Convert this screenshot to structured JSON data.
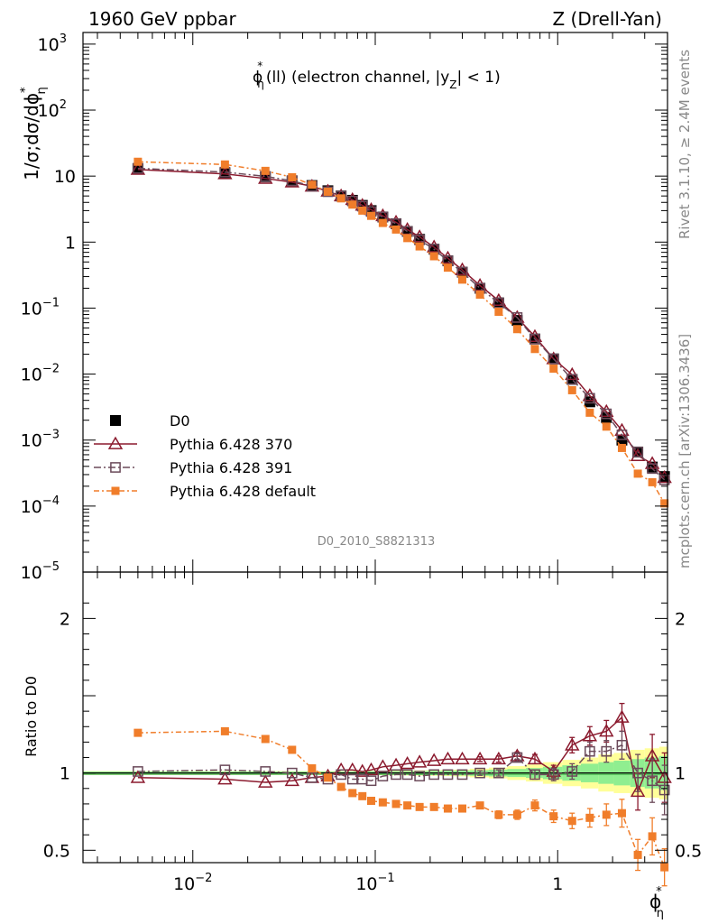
{
  "header": {
    "energy": "1960 GeV ppbar",
    "process": "Z (Drell-Yan)",
    "analysis_tag": "D0_2010_S8821313",
    "side_info": "Rivet 3.1.10, ≥ 2.4M events",
    "side_source": "mcplots.cern.ch [arXiv:1306.3436]"
  },
  "chart_data": [
    {
      "type": "scatter",
      "panel": "main",
      "title_base": "ϕ",
      "title_star": "*",
      "title_sub": "η",
      "title_rest": "(ll) (electron channel, |y",
      "title_ysub": "Z",
      "title_end": "| < 1)",
      "ylabel": "1/σ;dσ/dϕ",
      "ylabel_sup": "*",
      "ylabel_sub": "η",
      "x_scale": "log",
      "y_scale": "log",
      "xlim": [
        0.0025,
        4.0
      ],
      "ylim": [
        1e-05,
        1500
      ],
      "yticks": [
        {
          "v": 1e-05,
          "base": "10",
          "exp": "−5"
        },
        {
          "v": 0.0001,
          "base": "10",
          "exp": "−4"
        },
        {
          "v": 0.001,
          "base": "10",
          "exp": "−3"
        },
        {
          "v": 0.01,
          "base": "10",
          "exp": "−2"
        },
        {
          "v": 0.1,
          "base": "10",
          "exp": "−1"
        },
        {
          "v": 1,
          "base": "1",
          "exp": ""
        },
        {
          "v": 10,
          "base": "10",
          "exp": ""
        },
        {
          "v": 100,
          "base": "10",
          "exp": "2"
        },
        {
          "v": 1000,
          "base": "10",
          "exp": "3"
        }
      ],
      "x": [
        0.005,
        0.015,
        0.025,
        0.035,
        0.045,
        0.055,
        0.065,
        0.075,
        0.085,
        0.095,
        0.11,
        0.13,
        0.15,
        0.175,
        0.21,
        0.25,
        0.3,
        0.375,
        0.475,
        0.6,
        0.75,
        0.95,
        1.2,
        1.5,
        1.85,
        2.25,
        2.75,
        3.3,
        3.85
      ],
      "legend_position": "lower-left",
      "series": [
        {
          "name": "D0",
          "style": "filled-square",
          "color": "#000000",
          "values": [
            13,
            11.2,
            9.8,
            8.5,
            7.2,
            6.0,
            5.0,
            4.3,
            3.6,
            3.0,
            2.4,
            1.9,
            1.45,
            1.1,
            0.78,
            0.52,
            0.35,
            0.2,
            0.12,
            0.065,
            0.034,
            0.017,
            0.0083,
            0.0038,
            0.0022,
            0.001,
            0.00066,
            0.00039,
            0.00028
          ]
        },
        {
          "name": "Pythia 6.428 370",
          "style": "open-triangle",
          "color": "#8b1a2e",
          "values": [
            12.6,
            10.8,
            9.2,
            8.1,
            7.0,
            5.9,
            5.0,
            4.4,
            3.6,
            3.1,
            2.5,
            2.0,
            1.55,
            1.2,
            0.84,
            0.57,
            0.38,
            0.22,
            0.13,
            0.072,
            0.037,
            0.017,
            0.0098,
            0.0047,
            0.0027,
            0.0014,
            0.00058,
            0.00044,
            0.00027
          ]
        },
        {
          "name": "Pythia 6.428 391",
          "style": "open-square",
          "color": "#6b4a5a",
          "values": [
            13.1,
            11.5,
            9.9,
            8.5,
            7.0,
            5.8,
            5.0,
            4.2,
            3.5,
            2.9,
            2.4,
            1.9,
            1.45,
            1.08,
            0.78,
            0.52,
            0.35,
            0.2,
            0.12,
            0.072,
            0.034,
            0.017,
            0.0083,
            0.0043,
            0.0025,
            0.0012,
            0.00066,
            0.00037,
            0.00025
          ]
        },
        {
          "name": "Pythia 6.428 default",
          "style": "filled-small-square",
          "color": "#f07d2a",
          "values": [
            16.5,
            15.0,
            12.0,
            9.6,
            7.4,
            5.8,
            4.6,
            3.7,
            3.0,
            2.5,
            1.95,
            1.55,
            1.15,
            0.86,
            0.61,
            0.41,
            0.27,
            0.16,
            0.088,
            0.048,
            0.024,
            0.0121,
            0.0057,
            0.0026,
            0.0016,
            0.00076,
            0.00031,
            0.00023,
            0.00011
          ]
        }
      ]
    },
    {
      "type": "scatter",
      "panel": "ratio",
      "ylabel": "Ratio to D0",
      "xlabel_base": "ϕ",
      "xlabel_sup": "*",
      "xlabel_sub": "η",
      "x_scale": "log",
      "xlim": [
        0.0025,
        4.0
      ],
      "ylim": [
        0.42,
        2.3
      ],
      "yticks": [
        {
          "v": 0.5,
          "label": "0.5"
        },
        {
          "v": 1,
          "label": "1"
        },
        {
          "v": 2,
          "label": "2"
        }
      ],
      "xticks": [
        {
          "v": 0.01,
          "base": "10",
          "exp": "−2"
        },
        {
          "v": 0.1,
          "base": "10",
          "exp": "−1"
        },
        {
          "v": 1,
          "base": "1",
          "exp": ""
        }
      ],
      "x": [
        0.005,
        0.015,
        0.025,
        0.035,
        0.045,
        0.055,
        0.065,
        0.075,
        0.085,
        0.095,
        0.11,
        0.13,
        0.15,
        0.175,
        0.21,
        0.25,
        0.3,
        0.375,
        0.475,
        0.6,
        0.75,
        0.95,
        1.2,
        1.5,
        1.85,
        2.25,
        2.75,
        3.3,
        3.85
      ],
      "bin_edges": [
        0.0025,
        0.01,
        0.02,
        0.03,
        0.04,
        0.05,
        0.06,
        0.07,
        0.08,
        0.09,
        0.1,
        0.12,
        0.14,
        0.16,
        0.19,
        0.23,
        0.27,
        0.33,
        0.42,
        0.53,
        0.67,
        0.83,
        1.06,
        1.34,
        1.67,
        2.03,
        2.5,
        3.0,
        3.6,
        4.0
      ],
      "bands": {
        "stat": {
          "color": "#90ee90",
          "halfwidth": [
            0.01,
            0.01,
            0.01,
            0.01,
            0.01,
            0.01,
            0.01,
            0.01,
            0.01,
            0.012,
            0.012,
            0.012,
            0.012,
            0.013,
            0.014,
            0.015,
            0.016,
            0.018,
            0.022,
            0.026,
            0.032,
            0.04,
            0.05,
            0.06,
            0.07,
            0.08,
            0.09,
            0.1,
            0.11
          ]
        },
        "total": {
          "color": "#ffff99",
          "halfwidth": [
            0.012,
            0.012,
            0.012,
            0.012,
            0.012,
            0.012,
            0.012,
            0.012,
            0.012,
            0.014,
            0.014,
            0.015,
            0.016,
            0.017,
            0.018,
            0.02,
            0.022,
            0.028,
            0.035,
            0.045,
            0.055,
            0.07,
            0.085,
            0.1,
            0.12,
            0.13,
            0.15,
            0.16,
            0.17
          ]
        }
      },
      "series": [
        {
          "name": "Pythia 6.428 370",
          "style": "open-triangle",
          "color": "#8b1a2e",
          "values": [
            0.97,
            0.96,
            0.94,
            0.95,
            0.97,
            0.98,
            1.02,
            1.02,
            1.01,
            1.02,
            1.04,
            1.05,
            1.06,
            1.07,
            1.08,
            1.09,
            1.09,
            1.09,
            1.09,
            1.11,
            1.09,
            1.01,
            1.18,
            1.24,
            1.27,
            1.36,
            0.88,
            1.11,
            0.97
          ],
          "err": [
            0.005,
            0.005,
            0.005,
            0.005,
            0.005,
            0.005,
            0.01,
            0.01,
            0.01,
            0.01,
            0.01,
            0.01,
            0.01,
            0.01,
            0.01,
            0.012,
            0.012,
            0.015,
            0.02,
            0.025,
            0.03,
            0.04,
            0.05,
            0.06,
            0.07,
            0.09,
            0.12,
            0.14,
            0.16
          ]
        },
        {
          "name": "Pythia 6.428 391",
          "style": "open-square",
          "color": "#6b4a5a",
          "values": [
            1.01,
            1.02,
            1.01,
            1.0,
            0.97,
            0.96,
            0.99,
            0.96,
            0.96,
            0.95,
            0.98,
            0.99,
            0.99,
            0.98,
            0.99,
            0.99,
            0.99,
            1.0,
            1.0,
            1.1,
            0.99,
            0.99,
            1.01,
            1.14,
            1.14,
            1.18,
            1.0,
            0.95,
            0.89
          ],
          "err": [
            0.005,
            0.005,
            0.005,
            0.005,
            0.005,
            0.005,
            0.01,
            0.01,
            0.01,
            0.01,
            0.01,
            0.01,
            0.01,
            0.01,
            0.01,
            0.012,
            0.012,
            0.015,
            0.02,
            0.025,
            0.03,
            0.04,
            0.05,
            0.06,
            0.07,
            0.09,
            0.12,
            0.14,
            0.16
          ]
        },
        {
          "name": "Pythia 6.428 default",
          "style": "filled-small-square",
          "color": "#f07d2a",
          "values": [
            1.26,
            1.27,
            1.22,
            1.15,
            1.03,
            0.97,
            0.91,
            0.87,
            0.85,
            0.82,
            0.81,
            0.8,
            0.79,
            0.78,
            0.78,
            0.77,
            0.77,
            0.79,
            0.73,
            0.73,
            0.79,
            0.72,
            0.69,
            0.71,
            0.73,
            0.74,
            0.47,
            0.59,
            0.39
          ],
          "err": [
            0.005,
            0.005,
            0.005,
            0.005,
            0.005,
            0.005,
            0.01,
            0.01,
            0.01,
            0.01,
            0.01,
            0.01,
            0.01,
            0.01,
            0.012,
            0.015,
            0.015,
            0.02,
            0.025,
            0.03,
            0.035,
            0.04,
            0.05,
            0.06,
            0.07,
            0.09,
            0.1,
            0.12,
            0.12
          ]
        }
      ]
    }
  ]
}
